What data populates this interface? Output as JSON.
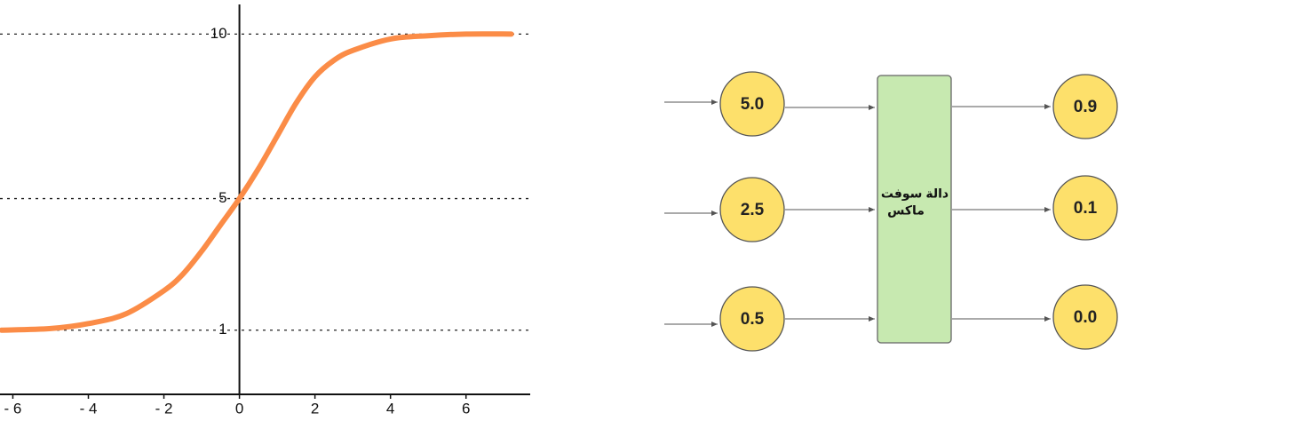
{
  "chart_data": {
    "type": "line",
    "x": [
      -6.3,
      -5,
      -4,
      -3,
      -2,
      -1.5,
      -1,
      -0.5,
      0,
      0.5,
      1,
      1.5,
      2,
      2.5,
      3,
      4,
      5,
      6,
      7.2
    ],
    "values": [
      1.0,
      1.05,
      1.2,
      1.5,
      2.2,
      2.7,
      3.4,
      4.2,
      5,
      5.9,
      6.9,
      7.9,
      8.7,
      9.2,
      9.5,
      9.85,
      9.95,
      10,
      10
    ],
    "color": "#fb8c47",
    "xlim": [
      -6.34,
      7.7
    ],
    "xticks": [
      {
        "value": -6,
        "label": "- 6"
      },
      {
        "value": -4,
        "label": "- 4"
      },
      {
        "value": -2,
        "label": "- 2"
      },
      0,
      2,
      4,
      6
    ],
    "ylim": [
      -0.95,
      10.9
    ],
    "yticks": [
      1,
      5,
      10
    ],
    "grid": true
  },
  "diagram": {
    "inputs": [
      "5.0",
      "2.5",
      "0.5"
    ],
    "box": {
      "lines": [
        "دالة سوفت",
        "ماكس"
      ]
    },
    "outputs": [
      "0.9",
      "0.1",
      "0.0"
    ]
  }
}
